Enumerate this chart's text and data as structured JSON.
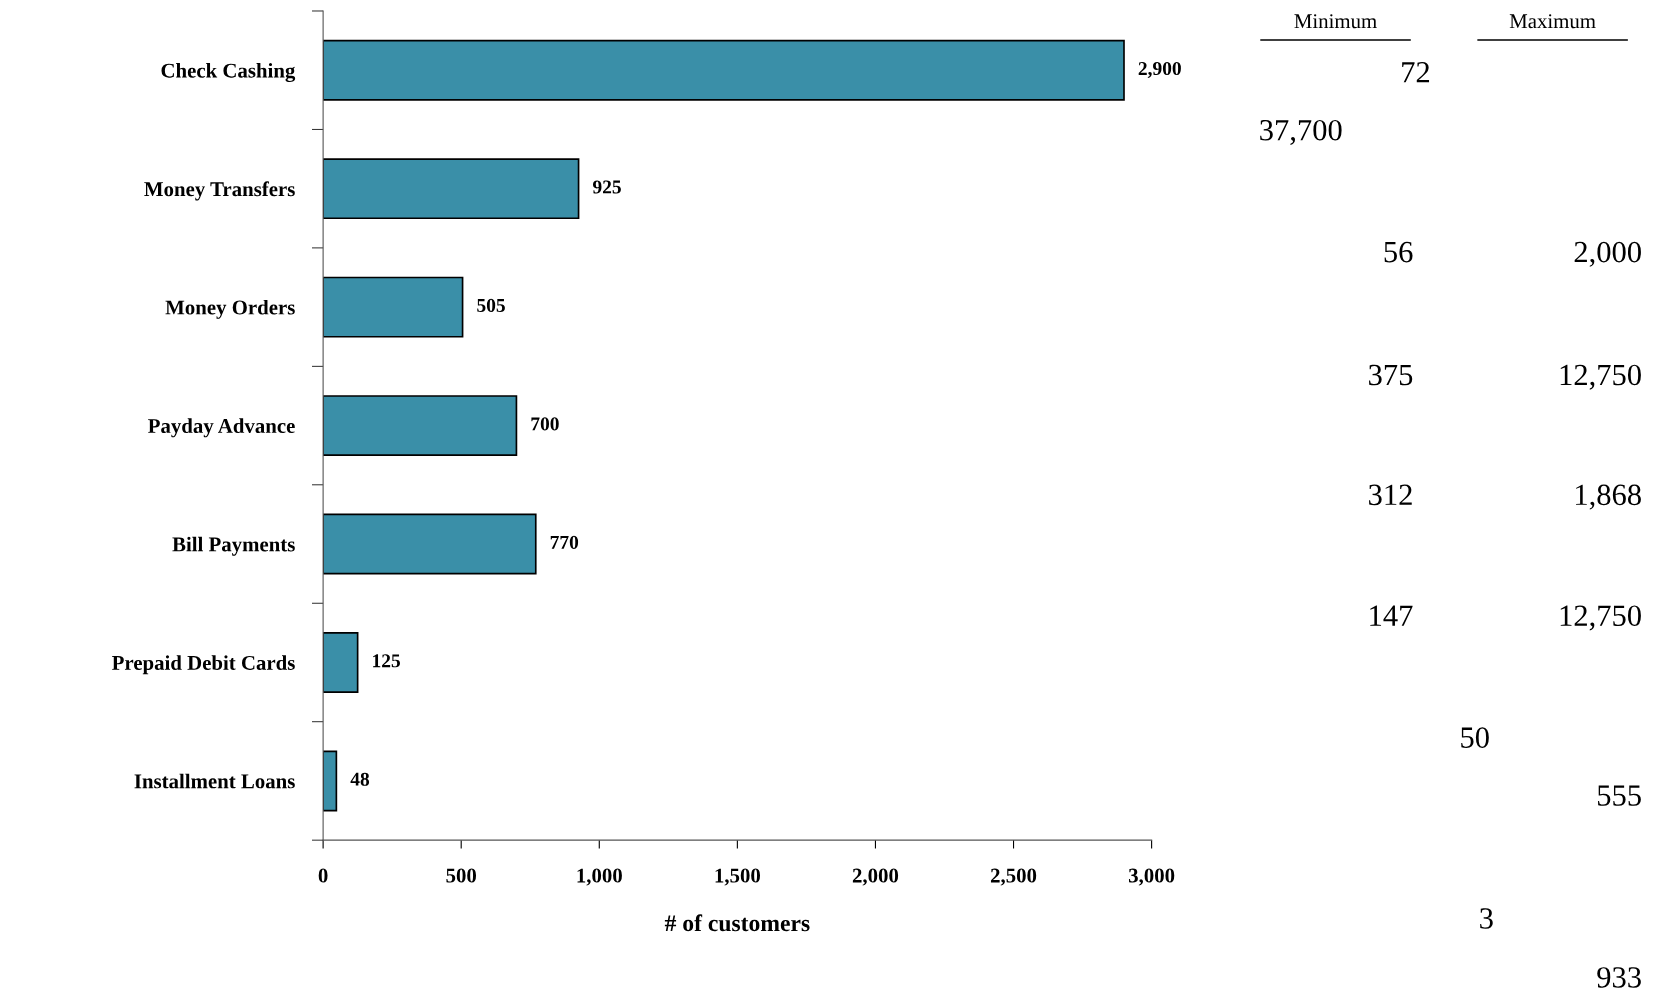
{
  "chart_data": {
    "type": "bar",
    "orientation": "horizontal",
    "xlabel": "# of customers",
    "categories": [
      "Check Cashing",
      "Money Transfers",
      "Money Orders",
      "Payday Advance",
      "Bill Payments",
      "Prepaid Debit Cards",
      "Installment Loans"
    ],
    "values": [
      2900,
      925,
      505,
      700,
      770,
      125,
      48
    ],
    "color": "#3a8fa8",
    "data_labels": true,
    "value_labels": [
      "2,900",
      "925",
      "505",
      "700",
      "770",
      "125",
      "48"
    ],
    "xlim": [
      0,
      3000
    ],
    "xticks": [
      {
        "value": 0,
        "label": "0"
      },
      {
        "value": 500,
        "label": "500"
      },
      {
        "value": 1000,
        "label": "1,000"
      },
      {
        "value": 1500,
        "label": "1,500"
      },
      {
        "value": 2000,
        "label": "2,000"
      },
      {
        "value": 2500,
        "label": "2,500"
      },
      {
        "value": 3000,
        "label": "3,000"
      }
    ],
    "grid": false,
    "legend": false,
    "annotations": [
      "Minimum",
      "Maximum",
      "72",
      "37,700",
      "56",
      "2,000",
      "375",
      "12,750",
      "312",
      "1,868",
      "147",
      "12,750",
      "50",
      "555",
      "3",
      "933"
    ]
  }
}
